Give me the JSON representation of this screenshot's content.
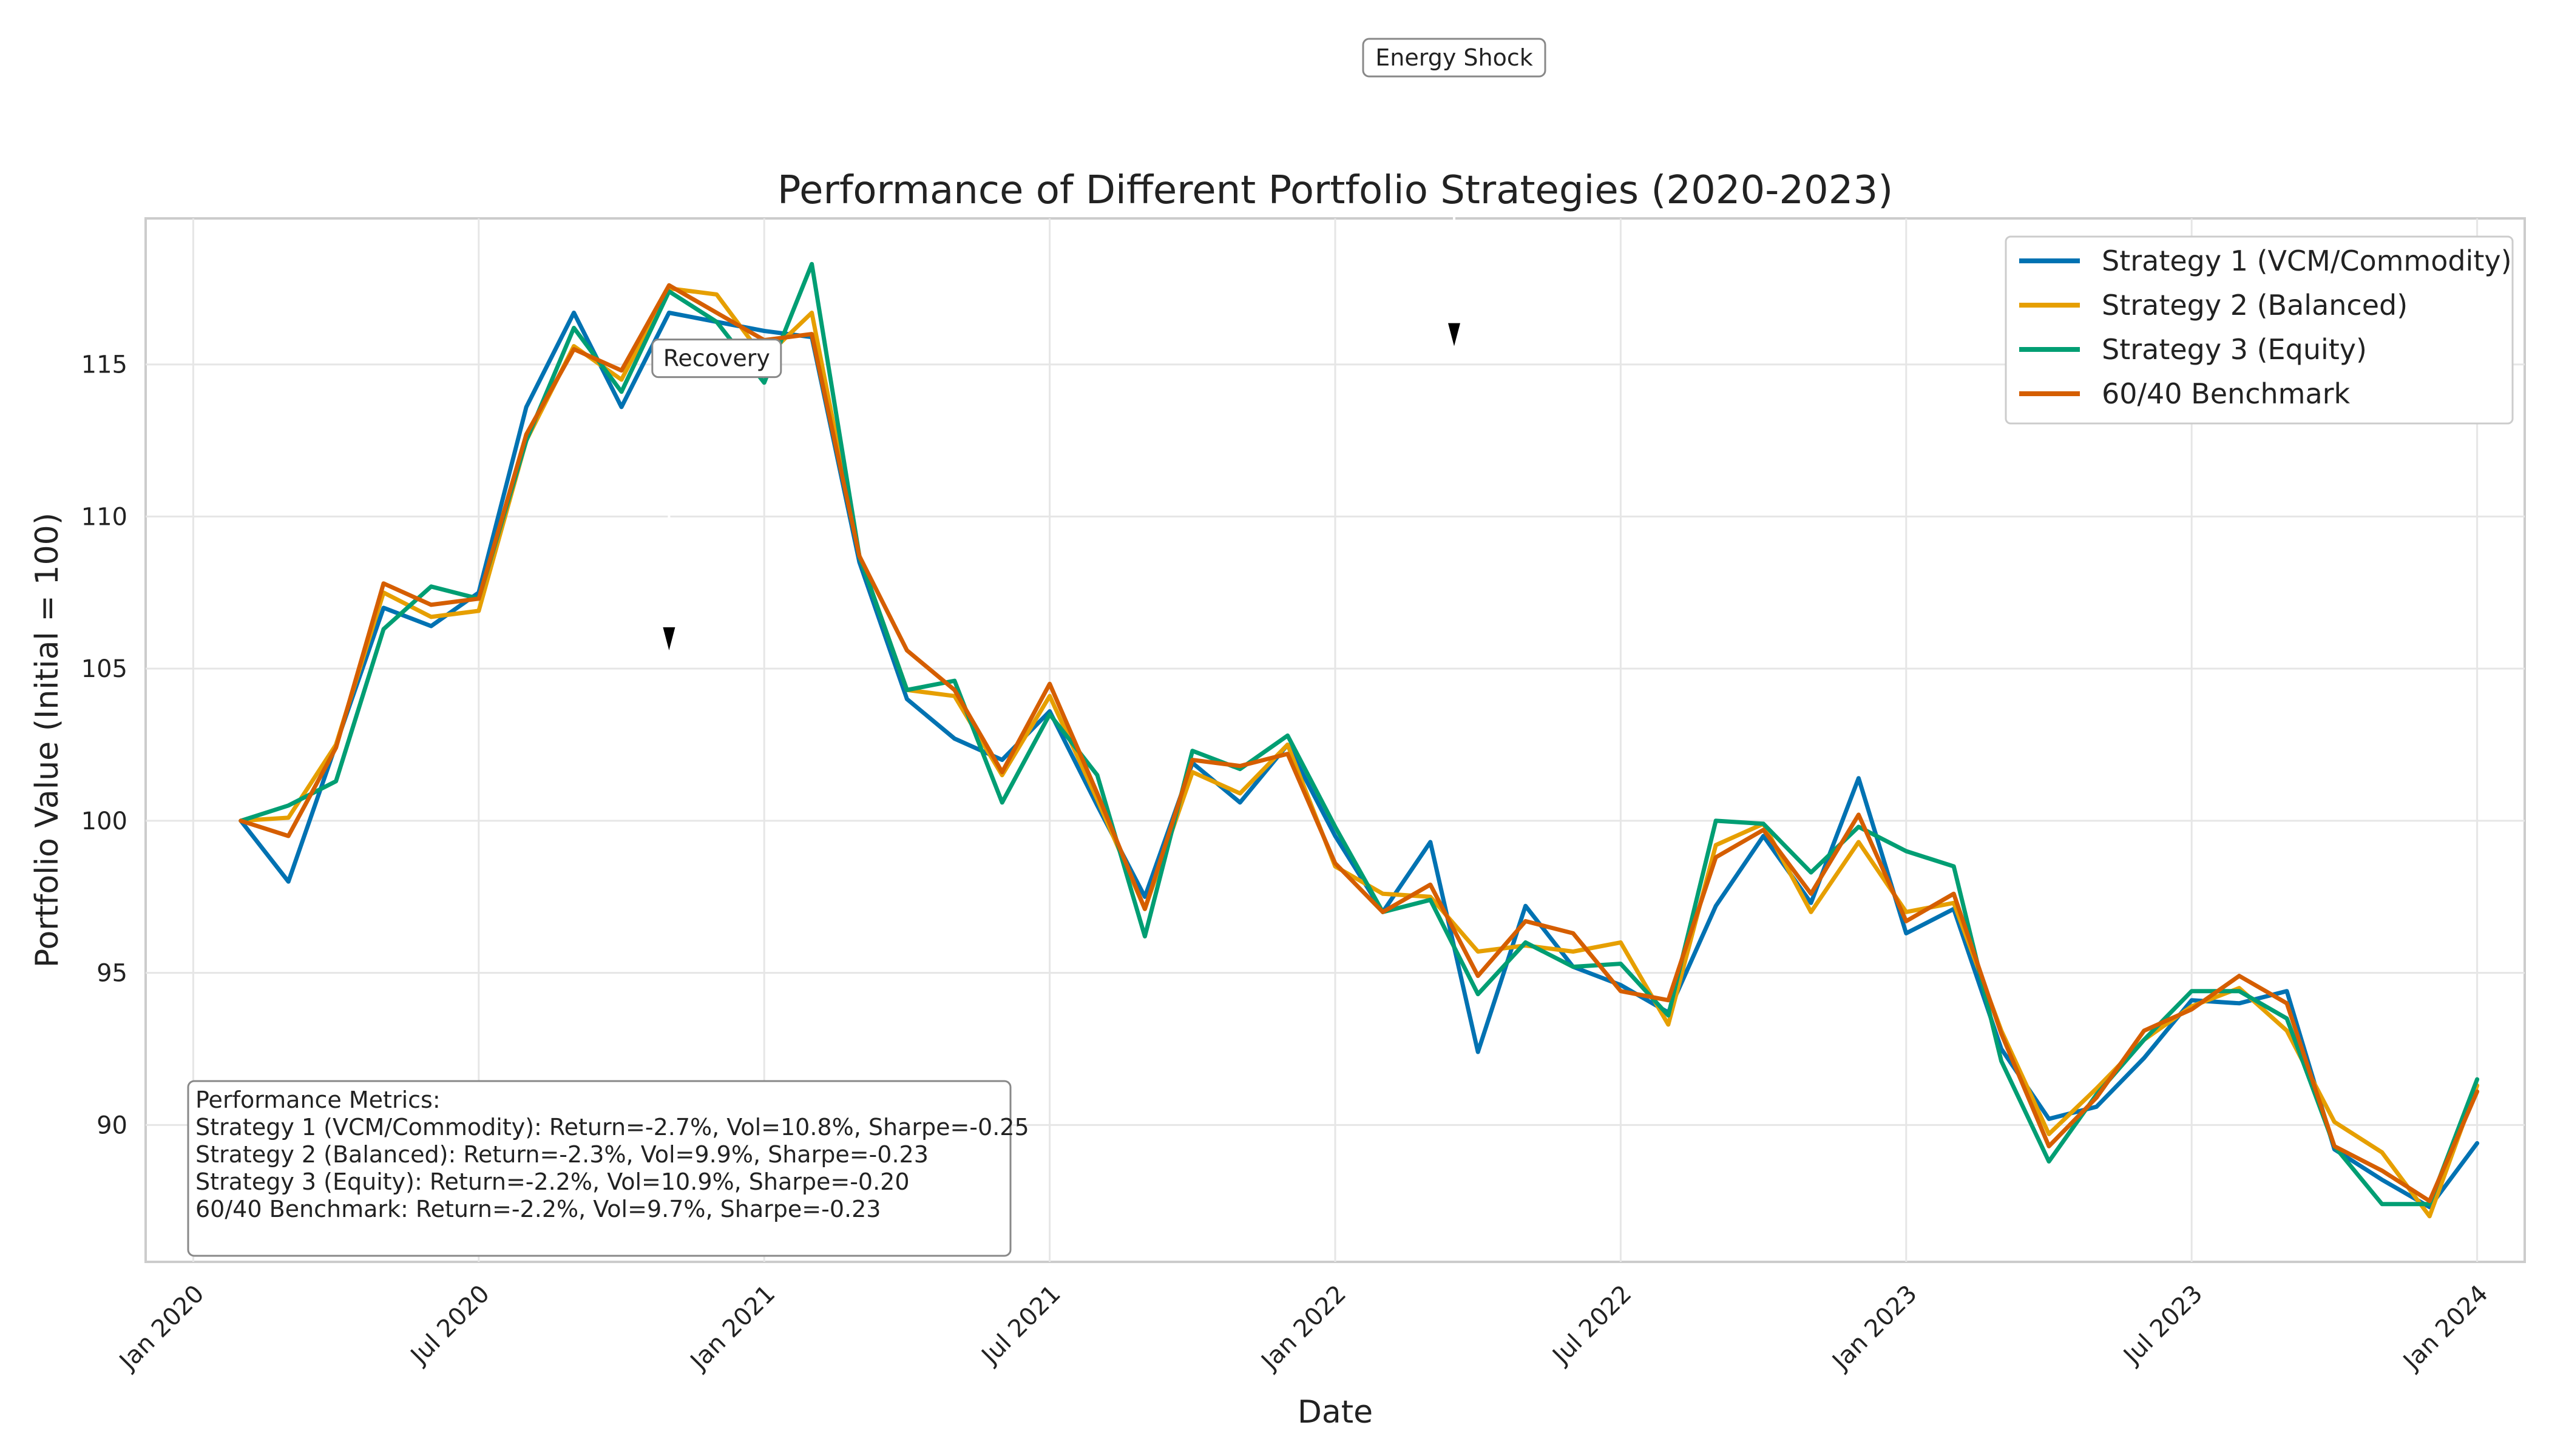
{
  "chart_data": {
    "type": "line",
    "title": "Performance of Different Portfolio Strategies (2020-2023)",
    "xlabel": "Date",
    "ylabel": "Portfolio Value (Initial = 100)",
    "ylim": [
      85.5,
      119.8
    ],
    "yticks": [
      90,
      95,
      100,
      105,
      110,
      115
    ],
    "xlim": [
      -1.0,
      49.0
    ],
    "xticks": [
      {
        "pos": 0,
        "label": "Jan 2020"
      },
      {
        "pos": 6,
        "label": "Jul 2020"
      },
      {
        "pos": 12,
        "label": "Jan 2021"
      },
      {
        "pos": 18,
        "label": "Jul 2021"
      },
      {
        "pos": 24,
        "label": "Jan 2022"
      },
      {
        "pos": 30,
        "label": "Jul 2022"
      },
      {
        "pos": 36,
        "label": "Jan 2023"
      },
      {
        "pos": 42,
        "label": "Jul 2023"
      },
      {
        "pos": 48,
        "label": "Jan 2024"
      }
    ],
    "grid": true,
    "legend_position": "top-right",
    "x_start": 1,
    "series": [
      {
        "name": "Strategy 1 (VCM/Commodity)",
        "color": "#0072B2",
        "values": [
          100.0,
          98.0,
          102.5,
          107.0,
          106.4,
          107.5,
          113.6,
          116.7,
          113.6,
          116.7,
          116.4,
          116.1,
          115.9,
          108.5,
          104.0,
          102.7,
          102.0,
          103.6,
          100.5,
          97.5,
          101.9,
          100.6,
          102.5,
          99.5,
          97.0,
          99.3,
          92.4,
          97.2,
          95.2,
          94.6,
          93.7,
          97.2,
          99.5,
          97.3,
          101.4,
          96.3,
          97.1,
          92.5,
          90.2,
          90.6,
          92.2,
          94.1,
          94.0,
          94.4,
          89.2,
          88.2,
          87.3,
          89.4
        ]
      },
      {
        "name": "Strategy 2 (Balanced)",
        "color": "#E69F00",
        "values": [
          100.0,
          100.1,
          102.5,
          107.5,
          106.7,
          106.9,
          112.5,
          115.6,
          114.5,
          117.5,
          117.3,
          115.2,
          116.7,
          108.7,
          104.3,
          104.1,
          101.5,
          104.1,
          100.7,
          97.1,
          101.6,
          100.9,
          102.5,
          98.5,
          97.6,
          97.5,
          95.7,
          95.9,
          95.7,
          96.0,
          93.3,
          99.2,
          99.9,
          97.0,
          99.3,
          97.0,
          97.3,
          93.1,
          89.7,
          91.2,
          92.8,
          93.9,
          94.5,
          93.1,
          90.1,
          89.1,
          87.0,
          91.3
        ]
      },
      {
        "name": "Strategy 3 (Equity)",
        "color": "#009E73",
        "values": [
          100.0,
          100.5,
          101.3,
          106.3,
          107.7,
          107.3,
          112.5,
          116.2,
          114.1,
          117.4,
          116.4,
          114.4,
          118.3,
          108.7,
          104.3,
          104.6,
          100.6,
          103.5,
          101.5,
          96.2,
          102.3,
          101.7,
          102.8,
          99.8,
          97.0,
          97.4,
          94.3,
          96.0,
          95.2,
          95.3,
          93.6,
          100.0,
          99.9,
          98.3,
          99.8,
          99.0,
          98.5,
          92.1,
          88.8,
          91.0,
          92.8,
          94.4,
          94.4,
          93.5,
          89.3,
          87.4,
          87.4,
          91.5
        ]
      },
      {
        "name": "60/40 Benchmark",
        "color": "#D55E00",
        "values": [
          100.0,
          99.5,
          102.4,
          107.8,
          107.1,
          107.3,
          112.7,
          115.5,
          114.8,
          117.6,
          116.7,
          115.8,
          116.0,
          108.7,
          105.6,
          104.3,
          101.6,
          104.5,
          100.9,
          97.1,
          102.0,
          101.8,
          102.2,
          98.6,
          97.0,
          97.9,
          94.9,
          96.7,
          96.3,
          94.4,
          94.1,
          98.8,
          99.7,
          97.6,
          100.2,
          96.7,
          97.6,
          93.0,
          89.3,
          90.9,
          93.1,
          93.8,
          94.9,
          94.0,
          89.3,
          88.5,
          87.5,
          91.1
        ]
      }
    ],
    "annotations": [
      {
        "text": "Recovery",
        "x": 11.0,
        "y": 115.2,
        "arrow_tip": [
          10.0,
          105.8
        ]
      },
      {
        "text": "Energy Shock",
        "x": 26.5,
        "y": 129.0,
        "arrow_tip": [
          26.5,
          115.8
        ]
      }
    ],
    "metrics_box": {
      "heading": "Performance Metrics:",
      "lines": [
        "Strategy 1 (VCM/Commodity): Return=-2.7%, Vol=10.8%, Sharpe=-0.25",
        "Strategy 2 (Balanced): Return=-2.3%, Vol=9.9%, Sharpe=-0.23",
        "Strategy 3 (Equity): Return=-2.2%, Vol=10.9%, Sharpe=-0.20",
        "60/40 Benchmark: Return=-2.2%, Vol=9.7%, Sharpe=-0.23"
      ]
    }
  }
}
